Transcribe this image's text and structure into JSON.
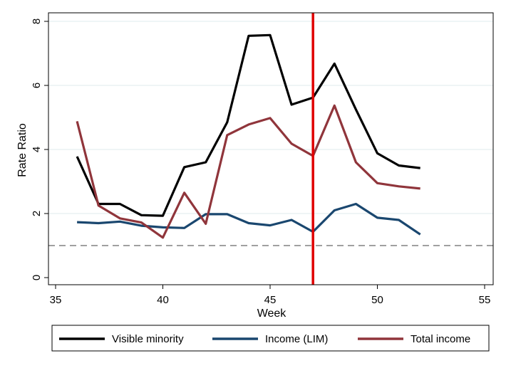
{
  "chart_data": {
    "type": "line",
    "title": "",
    "xlabel": "Week",
    "ylabel": "Rate Ratio",
    "xlim": [
      35,
      55
    ],
    "ylim": [
      0,
      8
    ],
    "xticks": [
      35,
      40,
      45,
      50,
      55
    ],
    "yticks": [
      0,
      2,
      4,
      6,
      8
    ],
    "grid": "horizontal",
    "legend_position": "bottom",
    "x": [
      36,
      37,
      38,
      39,
      40,
      41,
      42,
      43,
      44,
      45,
      46,
      47,
      48,
      49,
      50,
      51,
      52
    ],
    "series": [
      {
        "name": "Visible minority",
        "color": "#000000",
        "values": [
          3.78,
          2.3,
          2.3,
          1.95,
          1.93,
          3.45,
          3.6,
          4.85,
          7.55,
          7.57,
          5.4,
          5.62,
          6.68,
          5.25,
          3.88,
          3.5,
          3.42
        ]
      },
      {
        "name": "Income (LIM)",
        "color": "#1a476f",
        "values": [
          1.73,
          1.7,
          1.75,
          1.62,
          1.57,
          1.55,
          1.98,
          1.98,
          1.7,
          1.63,
          1.8,
          1.43,
          2.1,
          2.3,
          1.87,
          1.8,
          1.35
        ]
      },
      {
        "name": "Total income",
        "color": "#90353b",
        "values": [
          4.88,
          2.25,
          1.85,
          1.72,
          1.25,
          2.65,
          1.68,
          4.45,
          4.78,
          4.98,
          4.18,
          3.8,
          5.37,
          3.6,
          2.95,
          2.85,
          2.78
        ]
      }
    ],
    "reference_lines": [
      {
        "orientation": "horizontal",
        "value": 1,
        "color": "#808080",
        "style": "dashed"
      },
      {
        "orientation": "vertical",
        "value": 47,
        "color": "#e00000",
        "style": "solid"
      }
    ]
  }
}
